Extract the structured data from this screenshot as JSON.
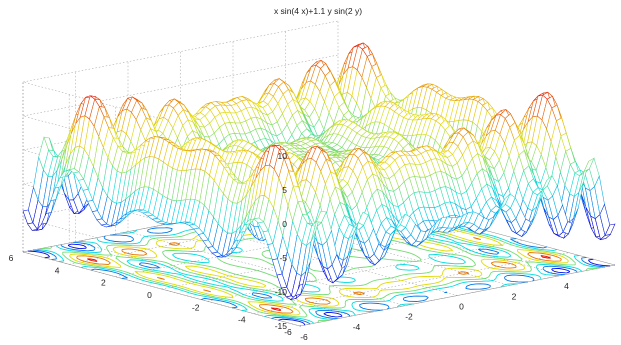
{
  "chart_data": {
    "type": "surface",
    "title": "x sin(4 x)+1.1 y sin(2 y)",
    "function": "x sin(4 x)+1.1 y sin(2 y)",
    "x_range": [
      -6,
      6
    ],
    "y_range": [
      -6,
      6
    ],
    "zlim": [
      -15,
      10
    ],
    "x_ticks": [
      "-6",
      "-4",
      "-2",
      "0",
      "2",
      "4"
    ],
    "y_ticks": [
      "-6",
      "-4",
      "-2",
      "0",
      "2",
      "4",
      "6"
    ],
    "z_ticks": [
      "10",
      "5",
      "0",
      "-5",
      "-10",
      "-15"
    ],
    "mesh": true,
    "contour_on_floor": true,
    "colormap": "jet",
    "grid": true
  }
}
